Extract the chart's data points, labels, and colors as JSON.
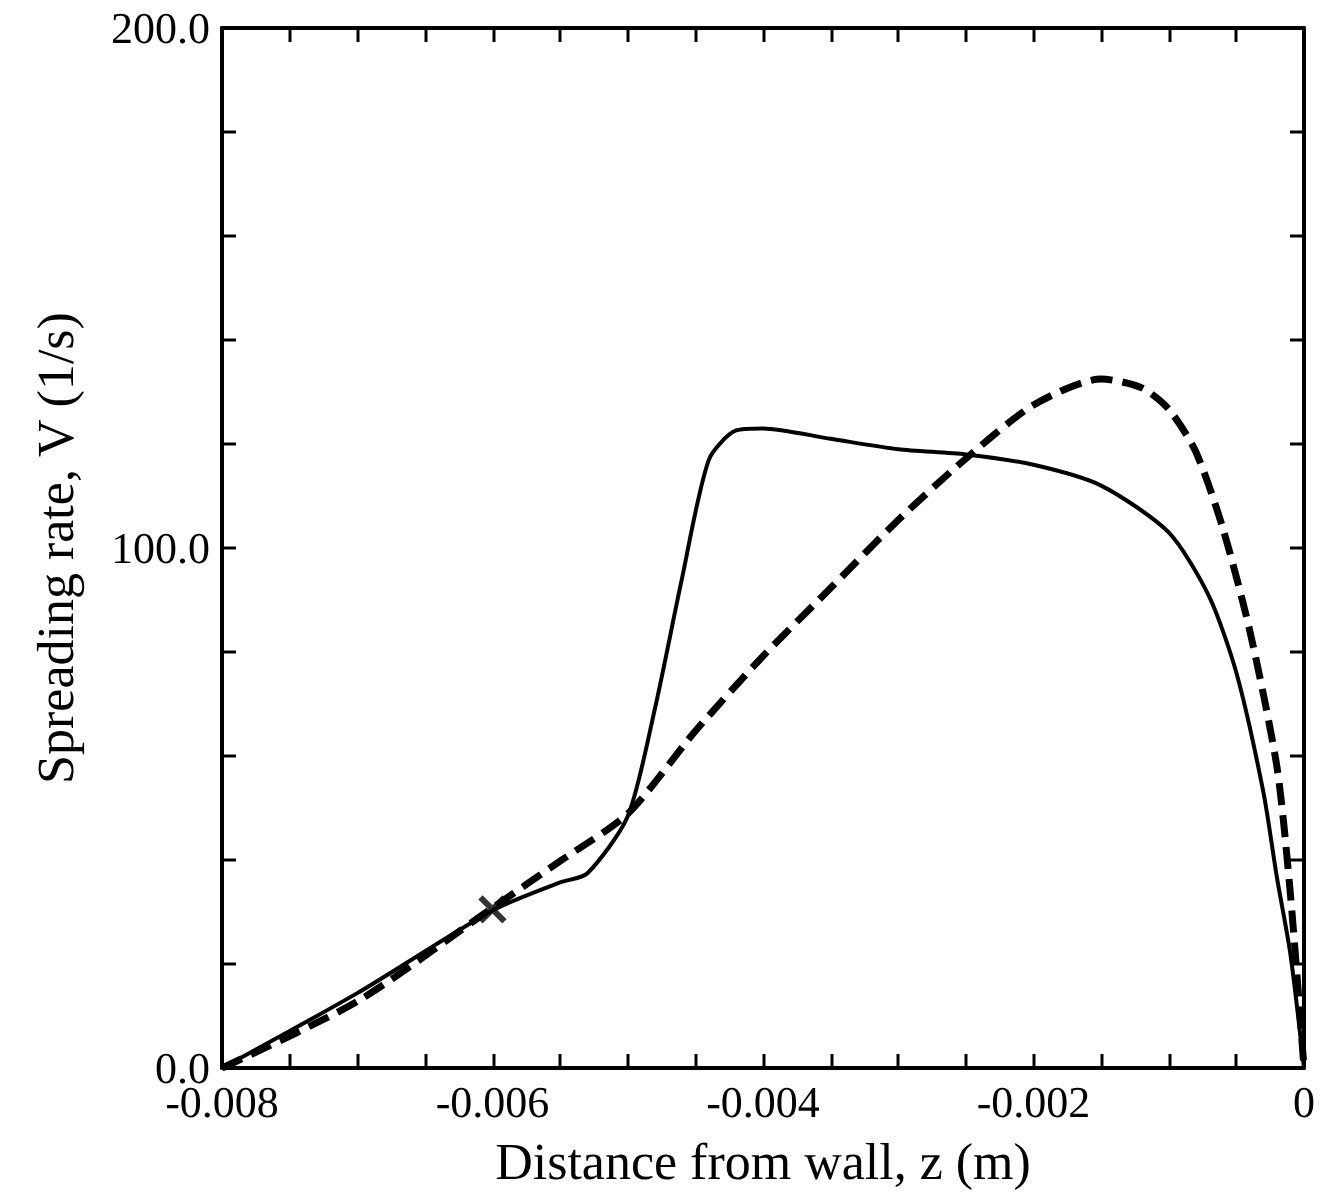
{
  "chart_data": {
    "type": "line",
    "xlabel": "Distance from wall, z (m)",
    "ylabel": "Spreading rate, V (1/s)",
    "xlim": [
      -0.008,
      0
    ],
    "ylim": [
      0,
      200
    ],
    "xticks": [
      -0.008,
      {
        "value": -0.0075,
        "label": null
      },
      {
        "value": -0.007,
        "label": null
      },
      {
        "value": -0.0065,
        "label": null
      },
      -0.006,
      {
        "value": -0.0055,
        "label": null
      },
      {
        "value": -0.005,
        "label": null
      },
      {
        "value": -0.0045,
        "label": null
      },
      -0.004,
      {
        "value": -0.0035,
        "label": null
      },
      {
        "value": -0.003,
        "label": null
      },
      {
        "value": -0.0025,
        "label": null
      },
      -0.002,
      {
        "value": -0.0015,
        "label": null
      },
      {
        "value": -0.001,
        "label": null
      },
      {
        "value": -0.0005,
        "label": null
      },
      0
    ],
    "yticks": [
      {
        "value": 0,
        "label": "0.0"
      },
      {
        "value": 20,
        "label": null
      },
      {
        "value": 40,
        "label": null
      },
      {
        "value": 60,
        "label": null
      },
      {
        "value": 80,
        "label": null
      },
      {
        "value": 100,
        "label": "100.0"
      },
      {
        "value": 120,
        "label": null
      },
      {
        "value": 140,
        "label": null
      },
      {
        "value": 160,
        "label": null
      },
      {
        "value": 180,
        "label": null
      },
      {
        "value": 200,
        "label": "200.0"
      }
    ],
    "grid": false,
    "marker": "none",
    "series": [
      {
        "color": "#000000",
        "line_style": "solid",
        "x": [
          -0.008,
          -0.007,
          -0.006,
          -0.0055,
          -0.0053,
          -0.005,
          -0.0048,
          -0.0046,
          -0.0044,
          -0.0042,
          -0.004,
          -0.0035,
          -0.003,
          -0.0025,
          -0.002,
          -0.0015,
          -0.001,
          -0.0007,
          -0.0005,
          -0.0003,
          -0.0002,
          -0.0001,
          0
        ],
        "values": [
          0,
          14.4,
          30.3,
          35.7,
          37.4,
          48.4,
          69,
          94,
          117,
          122.6,
          123,
          121,
          119,
          118,
          116,
          112,
          103,
          90.6,
          76,
          53,
          36.6,
          21.8,
          0
        ]
      },
      {
        "color": "#000000",
        "line_style": "dashed",
        "x": [
          -0.008,
          -0.007,
          -0.006,
          -0.0055,
          -0.005,
          -0.0045,
          -0.004,
          -0.0035,
          -0.003,
          -0.0025,
          -0.002,
          -0.0015,
          -0.0012,
          -0.001,
          -0.0008,
          -0.0006,
          -0.0004,
          -0.0002,
          -0.0001,
          0
        ],
        "values": [
          0,
          12.8,
          30.8,
          39.8,
          48.9,
          64.8,
          79.2,
          92.3,
          105.4,
          117.2,
          127.5,
          132.5,
          130.8,
          126.7,
          118.5,
          103.8,
          84,
          57.9,
          33.3,
          0
        ]
      },
      {
        "type": "scatter",
        "marker": "cross",
        "color": "#000000",
        "x": [
          -0.006
        ],
        "values": [
          30.5
        ]
      }
    ]
  }
}
